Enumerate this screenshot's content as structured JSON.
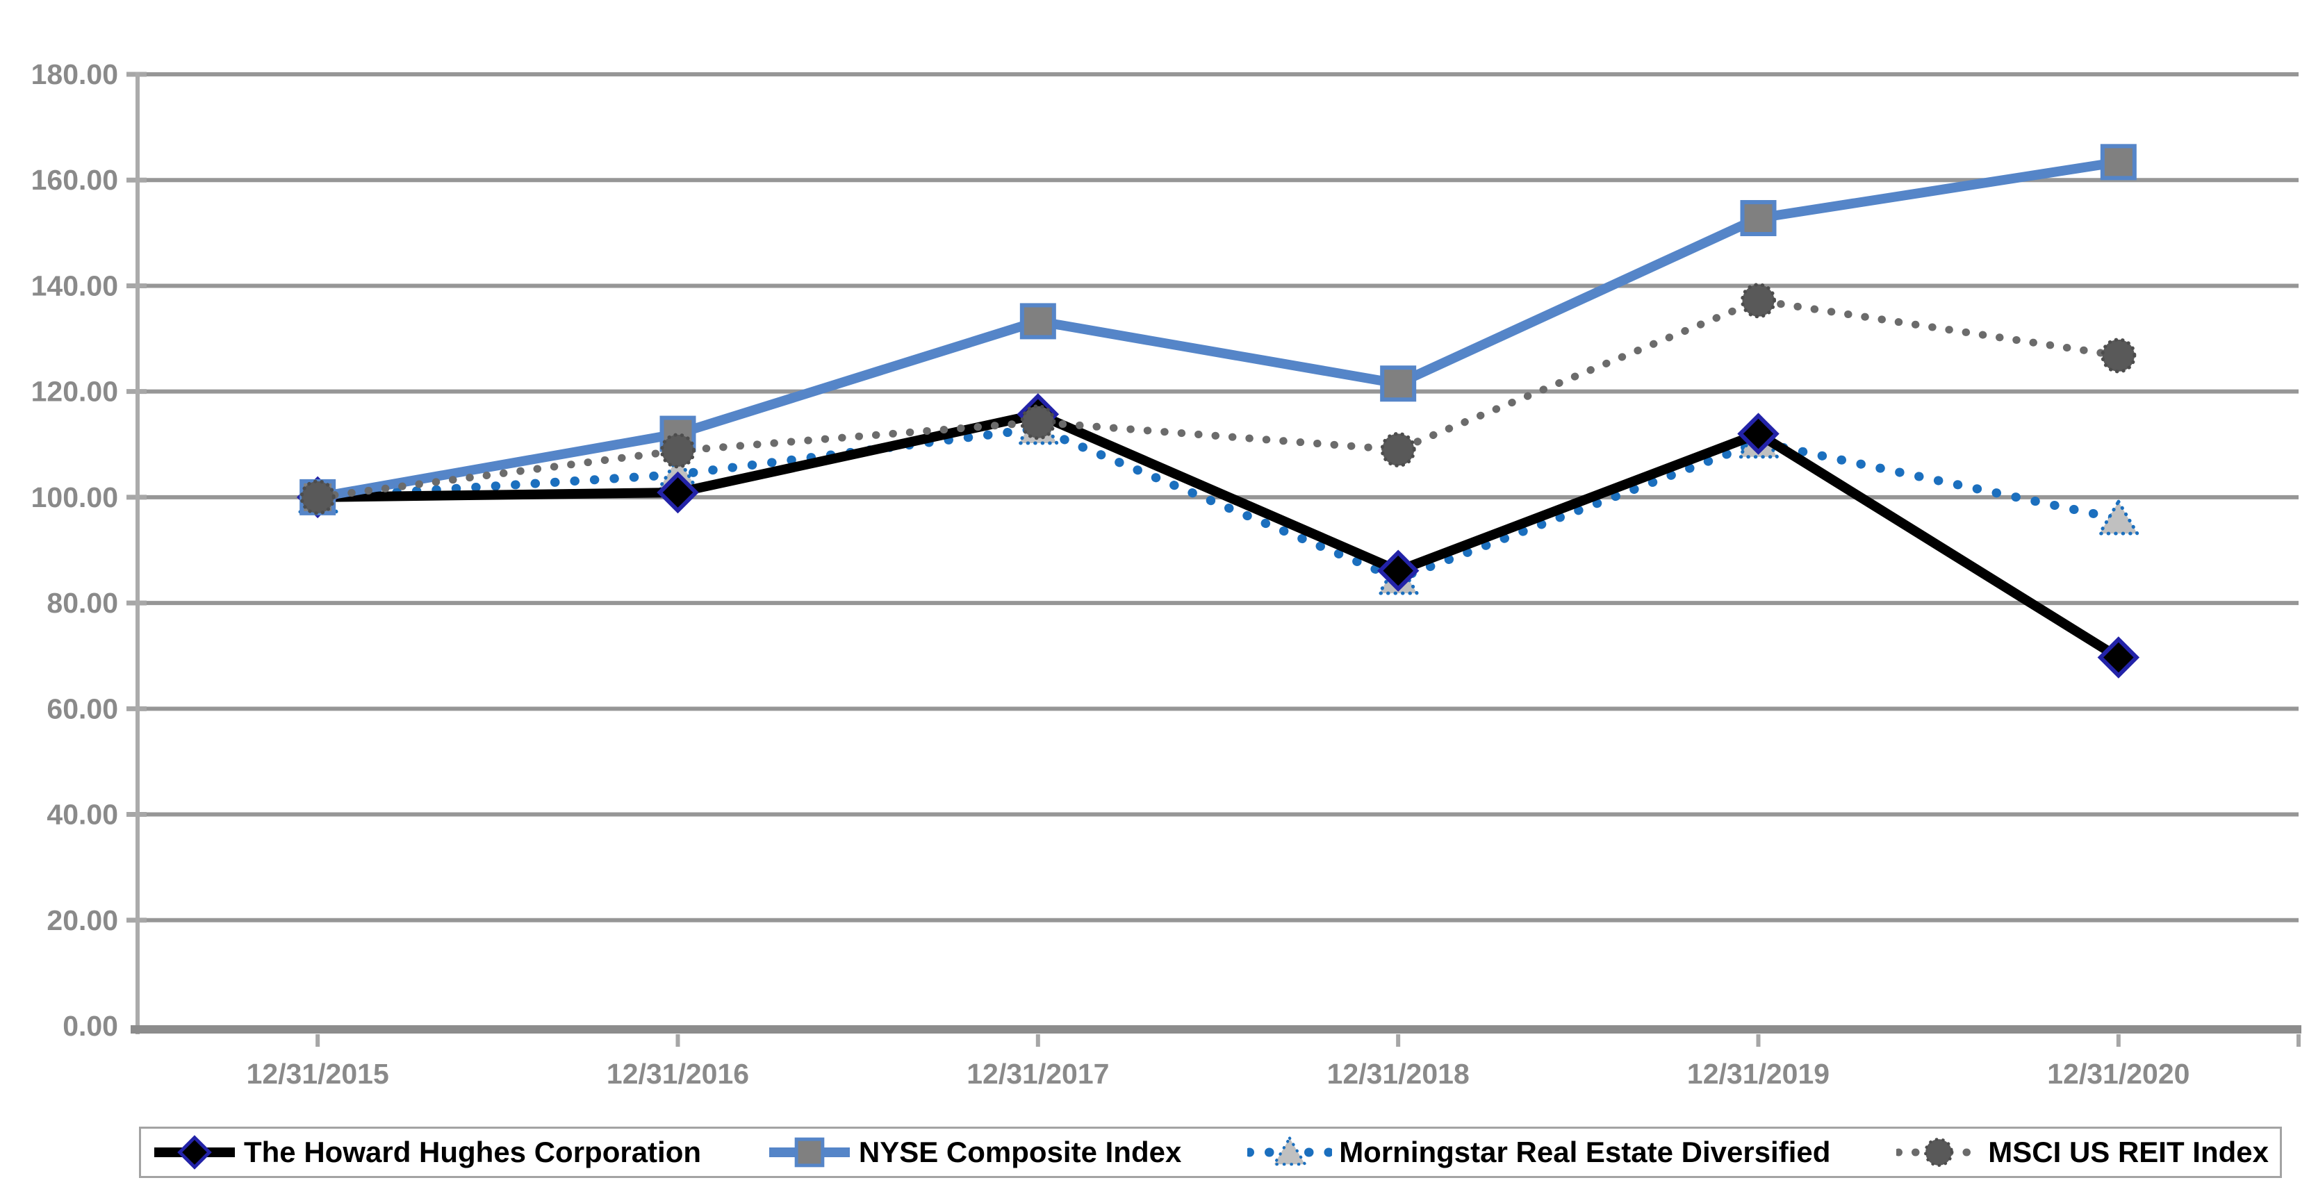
{
  "chart_data": {
    "type": "line",
    "title": "",
    "categories": [
      "12/31/2015",
      "12/31/2016",
      "12/31/2017",
      "12/31/2018",
      "12/31/2019",
      "12/31/2020"
    ],
    "series": [
      {
        "name": "The Howard Hughes Corporation",
        "values": [
          100.0,
          100.9,
          115.7,
          86.1,
          112.0,
          69.7
        ],
        "line_color": "#000000",
        "line_style": "solid",
        "marker": "diamond",
        "marker_fill": "#000000",
        "marker_stroke": "#2323A8"
      },
      {
        "name": "NYSE Composite Index",
        "values": [
          100.0,
          112.0,
          133.3,
          121.5,
          152.8,
          163.4
        ],
        "line_color": "#5585C8",
        "line_style": "solid",
        "marker": "square",
        "marker_fill": "#808080",
        "marker_stroke": "#5585C8"
      },
      {
        "name": "Morningstar Real Estate Diversified",
        "values": [
          100.0,
          104.3,
          113.0,
          84.6,
          110.4,
          95.9
        ],
        "line_color": "#1B6FBE",
        "line_style": "dotted",
        "marker": "triangle",
        "marker_fill": "#C0C0C0",
        "marker_stroke": "#1B6FBE"
      },
      {
        "name": "MSCI US REIT Index",
        "values": [
          100.0,
          108.8,
          114.2,
          109.0,
          137.2,
          126.8
        ],
        "line_color": "#6B6B6B",
        "line_style": "dotted",
        "marker": "circle",
        "marker_fill": "#595959",
        "marker_stroke": "#4D4D4D"
      }
    ],
    "draw_order": [
      2,
      0,
      1,
      3
    ],
    "ylim": [
      0,
      180
    ],
    "y_tick_step": 20,
    "y_tick_labels": [
      "0.00",
      "20.00",
      "40.00",
      "60.00",
      "80.00",
      "100.00",
      "120.00",
      "140.00",
      "160.00",
      "180.00"
    ],
    "x_tick_labels": [
      "12/31/2015",
      "12/31/2016",
      "12/31/2017",
      "12/31/2018",
      "12/31/2019",
      "12/31/2020"
    ],
    "grid": true,
    "legend_position": "bottom",
    "colors": {
      "gridline": "#969696",
      "axis_line": "#ABABAB",
      "axis_tick": "#A6A6A6",
      "axis_label": "#8A8A8A",
      "bottom_axis": "#8C8C8C",
      "legend_border": "#A3A3A3",
      "legend_text": "#000000",
      "background": "#FFFFFF"
    }
  }
}
